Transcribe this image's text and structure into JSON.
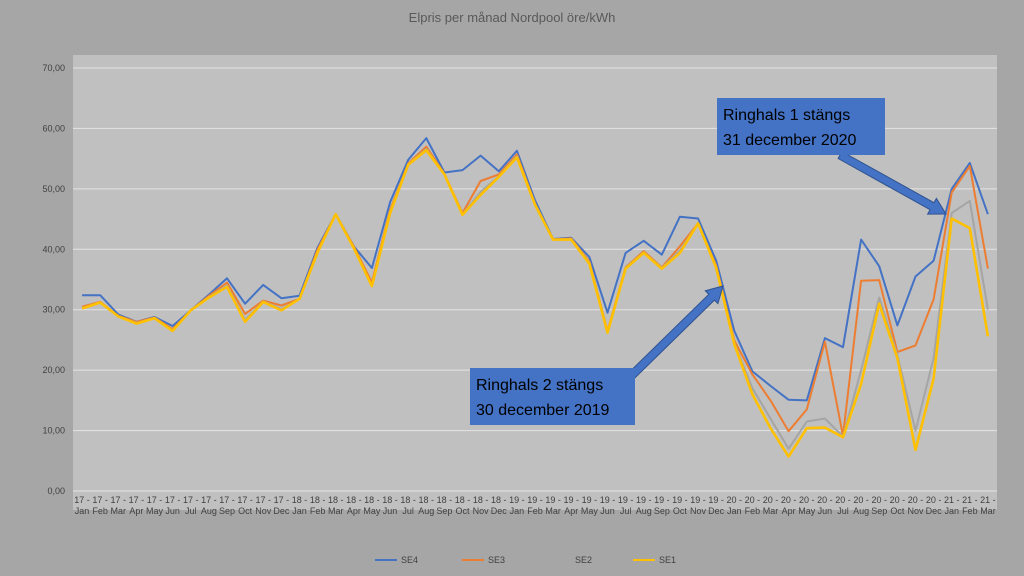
{
  "chart_data": {
    "type": "line",
    "title": "Elpris per månad Nordpool öre/kWh",
    "xlabel": "",
    "ylabel": "",
    "ylim": [
      0,
      70
    ],
    "yticks": [
      "0,00",
      "10,00",
      "20,00",
      "30,00",
      "40,00",
      "50,00",
      "60,00",
      "70,00"
    ],
    "grid": true,
    "legend_position": "bottom",
    "categories": [
      "17 - Jan",
      "17 - Feb",
      "17 - Mar",
      "17 - Apr",
      "17 - May",
      "17 - Jun",
      "17 - Jul",
      "17 - Aug",
      "17 - Sep",
      "17 - Oct",
      "17 - Nov",
      "17 - Dec",
      "18 - Jan",
      "18 - Feb",
      "18 - Mar",
      "18 - Apr",
      "18 - May",
      "18 - Jun",
      "18 - Jul",
      "18 - Aug",
      "18 - Sep",
      "18 - Oct",
      "18 - Nov",
      "18 - Dec",
      "19 - Jan",
      "19 - Feb",
      "19 - Mar",
      "19 - Apr",
      "19 - May",
      "19 - Jun",
      "19 - Jul",
      "19 - Aug",
      "19 - Sep",
      "19 - Oct",
      "19 - Nov",
      "19 - Dec",
      "20 - Jan",
      "20 - Feb",
      "20 - Mar",
      "20 - Apr",
      "20 - May",
      "20 - Jun",
      "20 - Jul",
      "20 - Aug",
      "20 - Sep",
      "20 - Oct",
      "20 - Nov",
      "20 - Dec",
      "21 - Jan",
      "21 - Feb",
      "21 - Mar"
    ],
    "series": [
      {
        "name": "SE4",
        "color": "#4472c4",
        "values": [
          32.4,
          32.4,
          29.2,
          28,
          28.8,
          27.3,
          29.9,
          32.5,
          35.2,
          31,
          34.1,
          31.9,
          32.3,
          40.3,
          45.8,
          40.5,
          36.9,
          47.8,
          54.8,
          58.4,
          52.7,
          53.1,
          55.5,
          52.9,
          56.3,
          48.1,
          41.7,
          41.9,
          38.7,
          29.5,
          39.4,
          41.4,
          39.1,
          45.4,
          45.1,
          38.1,
          26.5,
          19.8,
          17.4,
          15.1,
          15,
          25.3,
          23.8,
          41.6,
          37.2,
          27.4,
          35.5,
          38.1,
          50,
          54.3,
          45.8
        ]
      },
      {
        "name": "SE3",
        "color": "#ed7d31",
        "values": [
          30.5,
          31.3,
          29,
          28,
          28.7,
          26.8,
          29.9,
          32.3,
          34.5,
          29.3,
          31.5,
          30.7,
          31.8,
          40,
          45.8,
          40.5,
          34.5,
          46.5,
          54.2,
          57,
          52.5,
          46,
          51.3,
          52.4,
          55.7,
          47.6,
          41.6,
          41.8,
          38,
          26.5,
          37,
          39.7,
          37,
          40.5,
          44.3,
          37.3,
          24.9,
          19.3,
          15,
          9.9,
          13.5,
          24.7,
          9.1,
          34.8,
          34.9,
          23,
          24.1,
          31.7,
          49.4,
          53.8,
          36.8
        ]
      },
      {
        "name": "SE2",
        "color": "#a5a5a5",
        "values": [
          30.3,
          31.2,
          28.9,
          27.8,
          28.6,
          26.6,
          29.9,
          32.1,
          34,
          28.3,
          31.4,
          30.1,
          31.8,
          39.6,
          45.8,
          40.3,
          34,
          46.2,
          54.1,
          56.6,
          52.4,
          45.8,
          49.5,
          52.1,
          55.4,
          47.5,
          41.6,
          41.7,
          37.8,
          26.3,
          36.9,
          39.5,
          36.9,
          39.8,
          44.3,
          37,
          24.5,
          17,
          12,
          7,
          11.5,
          12,
          9,
          20,
          32,
          22.5,
          10,
          22,
          46,
          48,
          30
        ]
      },
      {
        "name": "SE1",
        "color": "#ffc000",
        "values": [
          30.2,
          31.2,
          28.9,
          27.7,
          28.6,
          26.5,
          29.9,
          32,
          33.8,
          28,
          31.3,
          29.9,
          31.8,
          39.5,
          45.8,
          40.2,
          33.9,
          46,
          54,
          56.4,
          52.4,
          45.7,
          49,
          52,
          55.2,
          47.4,
          41.6,
          41.6,
          37.6,
          26.2,
          36.8,
          39.4,
          36.8,
          39.4,
          44.3,
          36.9,
          24.3,
          16,
          10.4,
          5.7,
          10.4,
          10.5,
          8.9,
          17.7,
          31,
          22,
          6.8,
          18.6,
          45.1,
          43.5,
          25.6
        ]
      }
    ],
    "annotations": [
      {
        "line1": "Ringhals 1 stängs",
        "line2": "31 december 2020",
        "target": "21 - Jan"
      },
      {
        "line1": "Ringhals 2 stängs",
        "line2": "30 december 2019",
        "target": "19 - Dec"
      }
    ],
    "annotation_color": "#4472c4"
  }
}
